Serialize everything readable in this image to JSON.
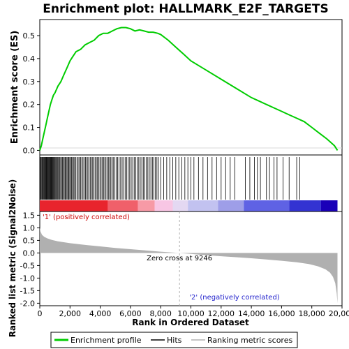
{
  "chart_data": [
    {
      "type": "line",
      "title": "Enrichment plot: HALLMARK_E2F_TARGETS",
      "ylabel": "Enrichment score (ES)",
      "ylim": [
        -0.02,
        0.57
      ],
      "yticks": [
        0.0,
        0.1,
        0.2,
        0.3,
        0.4,
        0.5
      ],
      "ytick_labels": [
        "0.0",
        "0.1",
        "0.2",
        "0.3",
        "0.4",
        "0.5"
      ],
      "line_color": "#00cc00",
      "series": [
        {
          "name": "Enrichment profile",
          "x": [
            0,
            100,
            200,
            300,
            400,
            500,
            600,
            700,
            800,
            900,
            1000,
            1200,
            1400,
            1600,
            1800,
            2000,
            2200,
            2400,
            2700,
            3000,
            3300,
            3600,
            3900,
            4200,
            4500,
            4800,
            5100,
            5400,
            5700,
            6000,
            6300,
            6600,
            6900,
            7200,
            7500,
            7800,
            8000,
            8500,
            9000,
            9500,
            10000,
            11000,
            12000,
            13000,
            14000,
            14500,
            15000,
            15500,
            16000,
            16500,
            17000,
            17500,
            18000,
            18500,
            19000,
            19500,
            19700
          ],
          "values": [
            0.0,
            0.02,
            0.05,
            0.08,
            0.11,
            0.14,
            0.17,
            0.2,
            0.22,
            0.24,
            0.25,
            0.28,
            0.3,
            0.33,
            0.36,
            0.39,
            0.41,
            0.43,
            0.44,
            0.46,
            0.47,
            0.48,
            0.5,
            0.51,
            0.51,
            0.52,
            0.53,
            0.535,
            0.535,
            0.53,
            0.52,
            0.525,
            0.52,
            0.515,
            0.515,
            0.51,
            0.505,
            0.48,
            0.45,
            0.42,
            0.39,
            0.35,
            0.31,
            0.27,
            0.23,
            0.215,
            0.2,
            0.185,
            0.17,
            0.155,
            0.14,
            0.125,
            0.1,
            0.075,
            0.05,
            0.02,
            0.0
          ]
        }
      ]
    },
    {
      "type": "scatter",
      "series": [
        {
          "name": "Hits",
          "x": [
            30,
            80,
            130,
            170,
            210,
            260,
            300,
            340,
            380,
            420,
            460,
            500,
            540,
            580,
            620,
            660,
            700,
            740,
            780,
            820,
            860,
            900,
            950,
            1000,
            1050,
            1100,
            1150,
            1200,
            1250,
            1320,
            1380,
            1440,
            1500,
            1560,
            1620,
            1680,
            1740,
            1800,
            1860,
            1920,
            1980,
            2040,
            2100,
            2160,
            2230,
            2300,
            2380,
            2460,
            2540,
            2620,
            2700,
            2780,
            2860,
            2940,
            3020,
            3100,
            3180,
            3260,
            3340,
            3420,
            3500,
            3580,
            3660,
            3740,
            3820,
            3900,
            3980,
            4060,
            4140,
            4220,
            4300,
            4380,
            4460,
            4540,
            4620,
            4700,
            4780,
            4860,
            4950,
            5050,
            5150,
            5250,
            5350,
            5450,
            5550,
            5650,
            5750,
            5850,
            5950,
            6050,
            6150,
            6250,
            6350,
            6450,
            6550,
            6650,
            6750,
            6850,
            6950,
            7050,
            7150,
            7250,
            7350,
            7450,
            7550,
            7650,
            7750,
            7850,
            8000,
            8200,
            8400,
            8600,
            8800,
            9000,
            9200,
            9400,
            9600,
            9800,
            10000,
            10200,
            10500,
            10800,
            11100,
            11400,
            11700,
            12000,
            12300,
            12600,
            12900,
            13600,
            13900,
            14200,
            14400,
            14600,
            15000,
            15200,
            15500,
            15700,
            16100,
            16500,
            17000,
            17200
          ]
        }
      ]
    },
    {
      "type": "area",
      "ylabel": "Ranked list metric (Signal2Noise)",
      "xlabel": "Rank in Ordered Dataset",
      "xlim": [
        0,
        20000
      ],
      "ylim": [
        -2.1,
        1.65
      ],
      "xticks": [
        0,
        2000,
        4000,
        6000,
        8000,
        10000,
        12000,
        14000,
        16000,
        18000,
        20000
      ],
      "xtick_labels": [
        "0",
        "2,000",
        "4,000",
        "6,000",
        "8,000",
        "10,000",
        "12,000",
        "14,000",
        "16,000",
        "18,000",
        "20,000"
      ],
      "yticks": [
        1.5,
        1.0,
        0.5,
        0.0,
        -0.5,
        -1.0,
        -1.5,
        -2.0
      ],
      "ytick_labels": [
        "1.5",
        "1.0",
        "0.5",
        "0.0",
        "-0.5",
        "-1.0",
        "-1.5",
        "-2.0"
      ],
      "series": [
        {
          "name": "Ranking metric scores",
          "x": [
            0,
            50,
            150,
            300,
            500,
            800,
            1200,
            2000,
            3000,
            4000,
            5000,
            6000,
            7000,
            8000,
            9246,
            10000,
            11000,
            12000,
            13000,
            14000,
            15000,
            16000,
            17000,
            17800,
            18400,
            18900,
            19200,
            19400,
            19550,
            19650,
            19700
          ],
          "values": [
            1.0,
            0.85,
            0.72,
            0.64,
            0.58,
            0.52,
            0.46,
            0.39,
            0.32,
            0.26,
            0.2,
            0.15,
            0.1,
            0.05,
            0.0,
            -0.04,
            -0.09,
            -0.13,
            -0.17,
            -0.21,
            -0.26,
            -0.31,
            -0.37,
            -0.44,
            -0.53,
            -0.65,
            -0.78,
            -0.95,
            -1.2,
            -1.6,
            -2.0
          ]
        }
      ],
      "annotations": {
        "positive": "'1' (positively correlated)",
        "negative": "'2' (negatively correlated)",
        "zero_cross": "Zero cross at 9246",
        "zero_cross_x": 9246
      }
    }
  ],
  "colors": {
    "enrichment_line": "#00cc00",
    "hit": "#000000",
    "metric_fill": "#b0b0b0",
    "positive_label": "#cc0000",
    "negative_label": "#2222cc",
    "zero_line": "#b0b0b0"
  },
  "heatmap_bar": [
    {
      "from": 0,
      "to": 4500,
      "color": "#e8242d"
    },
    {
      "from": 4500,
      "to": 6500,
      "color": "#f0606a"
    },
    {
      "from": 6500,
      "to": 7600,
      "color": "#f79aa6"
    },
    {
      "from": 7600,
      "to": 8800,
      "color": "#f8c6e4"
    },
    {
      "from": 8800,
      "to": 9800,
      "color": "#e4d8f2"
    },
    {
      "from": 9800,
      "to": 11800,
      "color": "#c2c2f0"
    },
    {
      "from": 11800,
      "to": 13500,
      "color": "#9e9ee8"
    },
    {
      "from": 13500,
      "to": 16500,
      "color": "#5f62e4"
    },
    {
      "from": 16500,
      "to": 18600,
      "color": "#3333d2"
    },
    {
      "from": 18600,
      "to": 19700,
      "color": "#1a00b8"
    }
  ],
  "legend": {
    "items": [
      {
        "label": "Enrichment profile",
        "color": "#00cc00",
        "icon": "green-line-icon"
      },
      {
        "label": "Hits",
        "color": "#000000",
        "icon": "black-line-icon"
      },
      {
        "label": "Ranking metric scores",
        "color": "#b0b0b0",
        "icon": "gray-line-icon"
      }
    ]
  }
}
